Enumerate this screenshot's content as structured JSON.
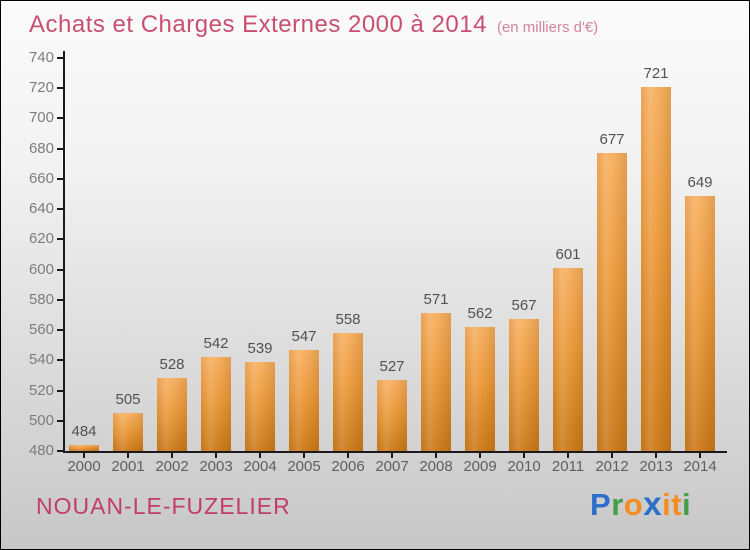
{
  "header": {
    "title": "Achats et Charges Externes 2000 à 2014",
    "subtitle": "(en milliers d'€)"
  },
  "chart_data": {
    "type": "bar",
    "title": "Achats et Charges Externes 2000 à 2014",
    "subtitle": "(en milliers d'€)",
    "categories": [
      "2000",
      "2001",
      "2002",
      "2003",
      "2004",
      "2005",
      "2006",
      "2007",
      "2008",
      "2009",
      "2010",
      "2011",
      "2012",
      "2013",
      "2014"
    ],
    "values": [
      484,
      505,
      528,
      542,
      539,
      547,
      558,
      527,
      571,
      562,
      567,
      601,
      677,
      721,
      649
    ],
    "xlabel": "",
    "ylabel": "",
    "ylim": [
      480,
      740
    ],
    "ytick_step": 20,
    "grid": false,
    "legend": "none",
    "bar_color_top": "#f7b061",
    "bar_color_bottom": "#cb7a1b",
    "axis_color": "#1a1a1a",
    "value_label_color": "#525252",
    "tick_label_color": "#7d7d7d"
  },
  "footer": {
    "place_name": "NOUAN-LE-FUZELIER",
    "place_color": "#c13d6c",
    "logo_letters": [
      {
        "ch": "P",
        "color": "#2b6fc9",
        "bold": false
      },
      {
        "ch": "r",
        "color": "#43a047",
        "bold": false
      },
      {
        "ch": "o",
        "color": "#f68b1f",
        "bold": false
      },
      {
        "ch": "x",
        "color": "#2b6fc9",
        "bold": true
      },
      {
        "ch": "i",
        "color": "#f68b1f",
        "bold": false
      },
      {
        "ch": "t",
        "color": "#f68b1f",
        "bold": false
      },
      {
        "ch": "i",
        "color": "#43a047",
        "bold": false
      }
    ]
  },
  "colors": {
    "title": "#c94f70",
    "subtitle": "#d2849f",
    "background_top": "#fbfbfb",
    "background_bottom": "#c7c7c7"
  }
}
